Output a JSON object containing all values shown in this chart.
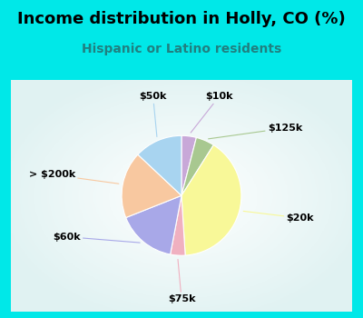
{
  "title": "Income distribution in Holly, CO (%)",
  "subtitle": "Hispanic or Latino residents",
  "labels": [
    "$10k",
    "$125k",
    "$20k",
    "$75k",
    "$60k",
    "> $200k",
    "$50k"
  ],
  "values": [
    4,
    5,
    40,
    4,
    16,
    18,
    13
  ],
  "colors": [
    "#c8a8d8",
    "#a8c890",
    "#f8f898",
    "#f0b0c0",
    "#a8a8e8",
    "#f8c8a0",
    "#a8d4f0"
  ],
  "outer_bg": "#00e8e8",
  "inner_bg_color": "#e8f8f0",
  "title_fontsize": 13,
  "subtitle_fontsize": 10,
  "subtitle_color": "#208080",
  "startangle": 90,
  "label_fontsize": 8
}
